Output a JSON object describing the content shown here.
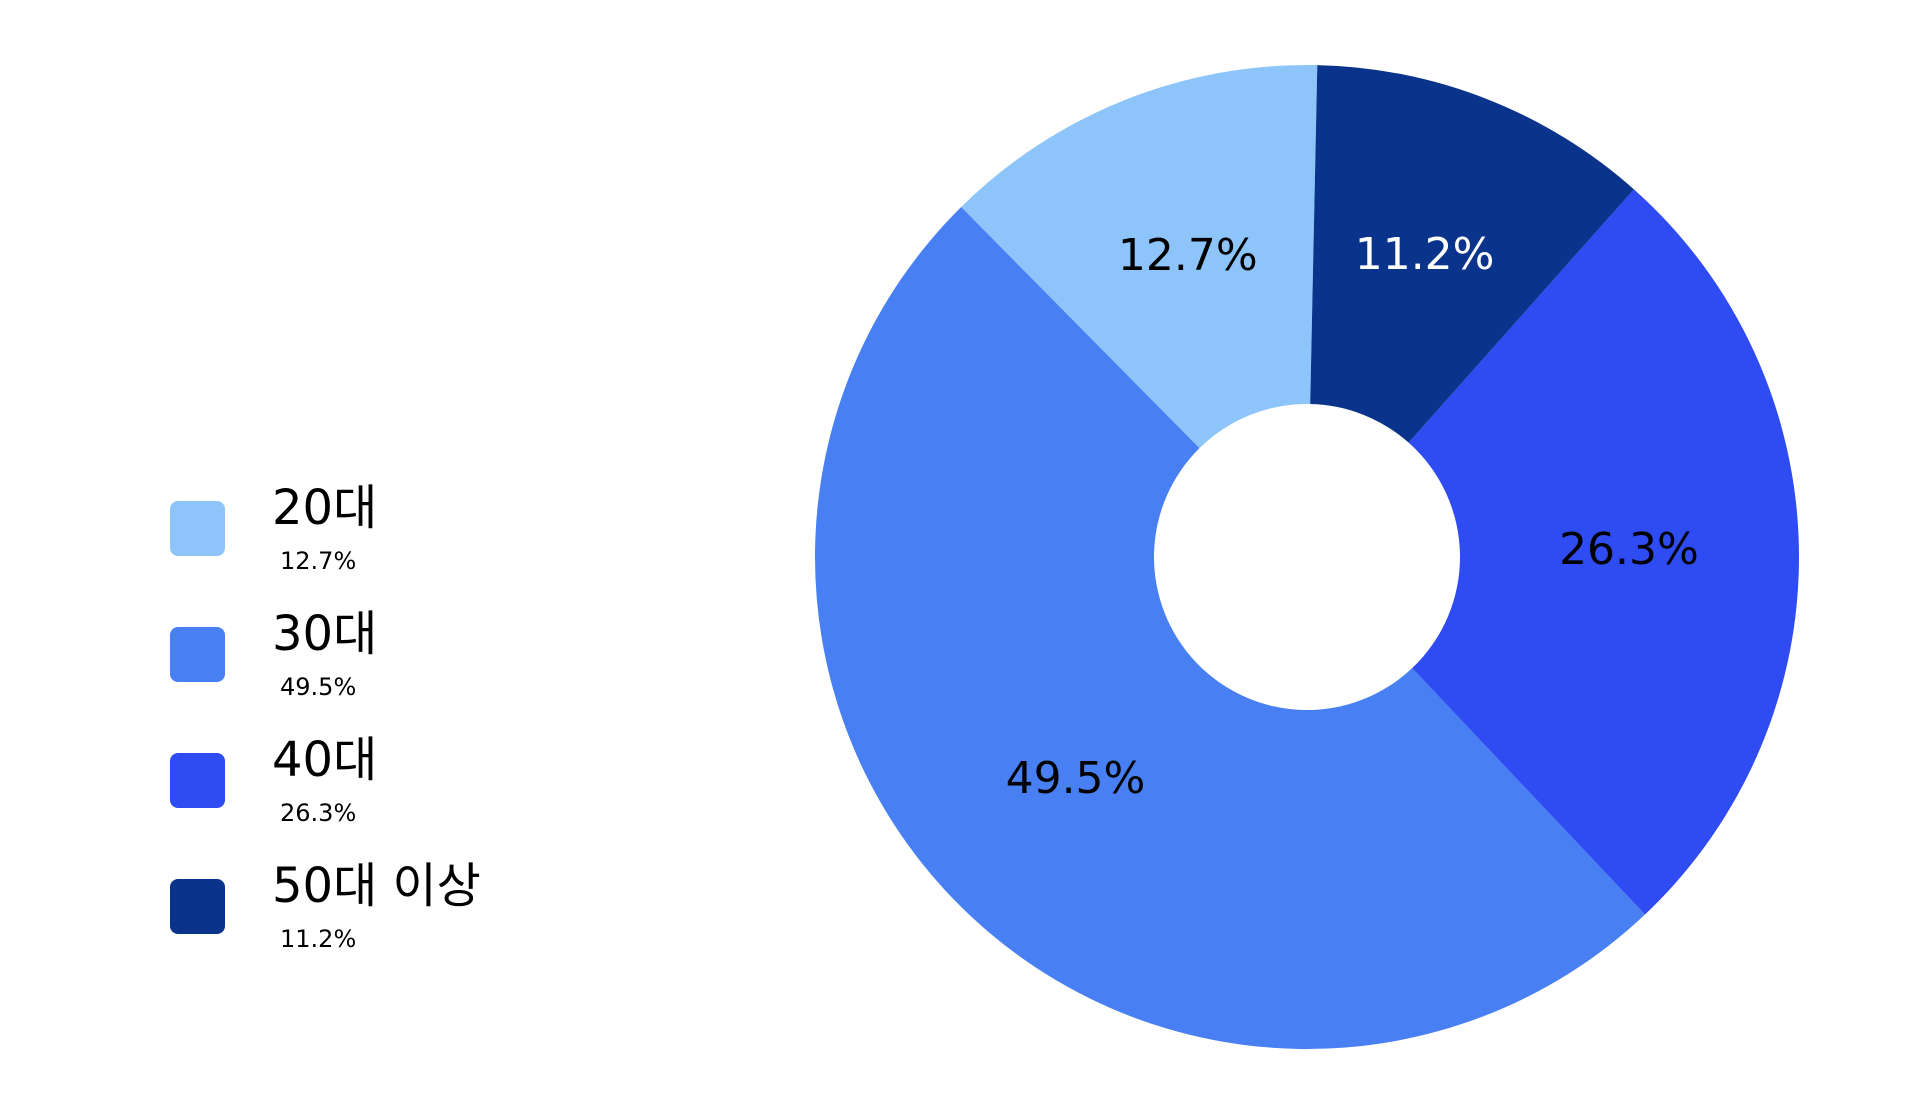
{
  "chart_data": {
    "type": "donut",
    "categories": [
      "20대",
      "30대",
      "40대",
      "50대 이상"
    ],
    "values": [
      12.7,
      49.5,
      26.3,
      11.2
    ],
    "value_labels": [
      "12.7%",
      "49.5%",
      "26.3%",
      "11.2%"
    ],
    "colors": [
      "#8DC5FA",
      "#4880F4",
      "#2F4BF2",
      "#0A338C"
    ],
    "legend": "left"
  }
}
